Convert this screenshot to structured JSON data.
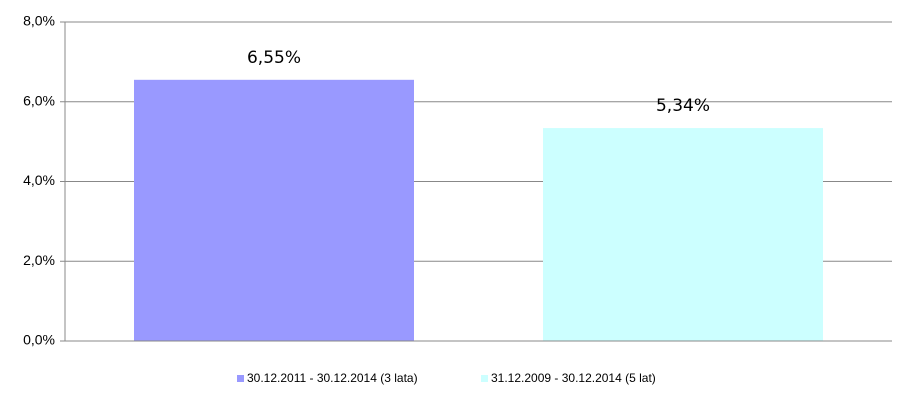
{
  "chart_data": {
    "type": "bar",
    "categories": [
      null
    ],
    "series": [
      {
        "name": "30.12.2011 - 30.12.2014 (3 lata)",
        "color": "#9999ff",
        "values": [
          6.55
        ],
        "value_labels": [
          "6,55%"
        ]
      },
      {
        "name": "31.12.2009 - 30.12.2014 (5 lat)",
        "color": "#ccffff",
        "values": [
          5.34
        ],
        "value_labels": [
          "5,34%"
        ]
      }
    ],
    "ylim": [
      0,
      8
    ],
    "yticks": [
      {
        "value": 0,
        "label": "0,0%"
      },
      {
        "value": 2,
        "label": "2,0%"
      },
      {
        "value": 4,
        "label": "4,0%"
      },
      {
        "value": 6,
        "label": "6,0%"
      },
      {
        "value": 8,
        "label": "8,0%"
      }
    ],
    "grid": true,
    "legend": "bottom"
  }
}
